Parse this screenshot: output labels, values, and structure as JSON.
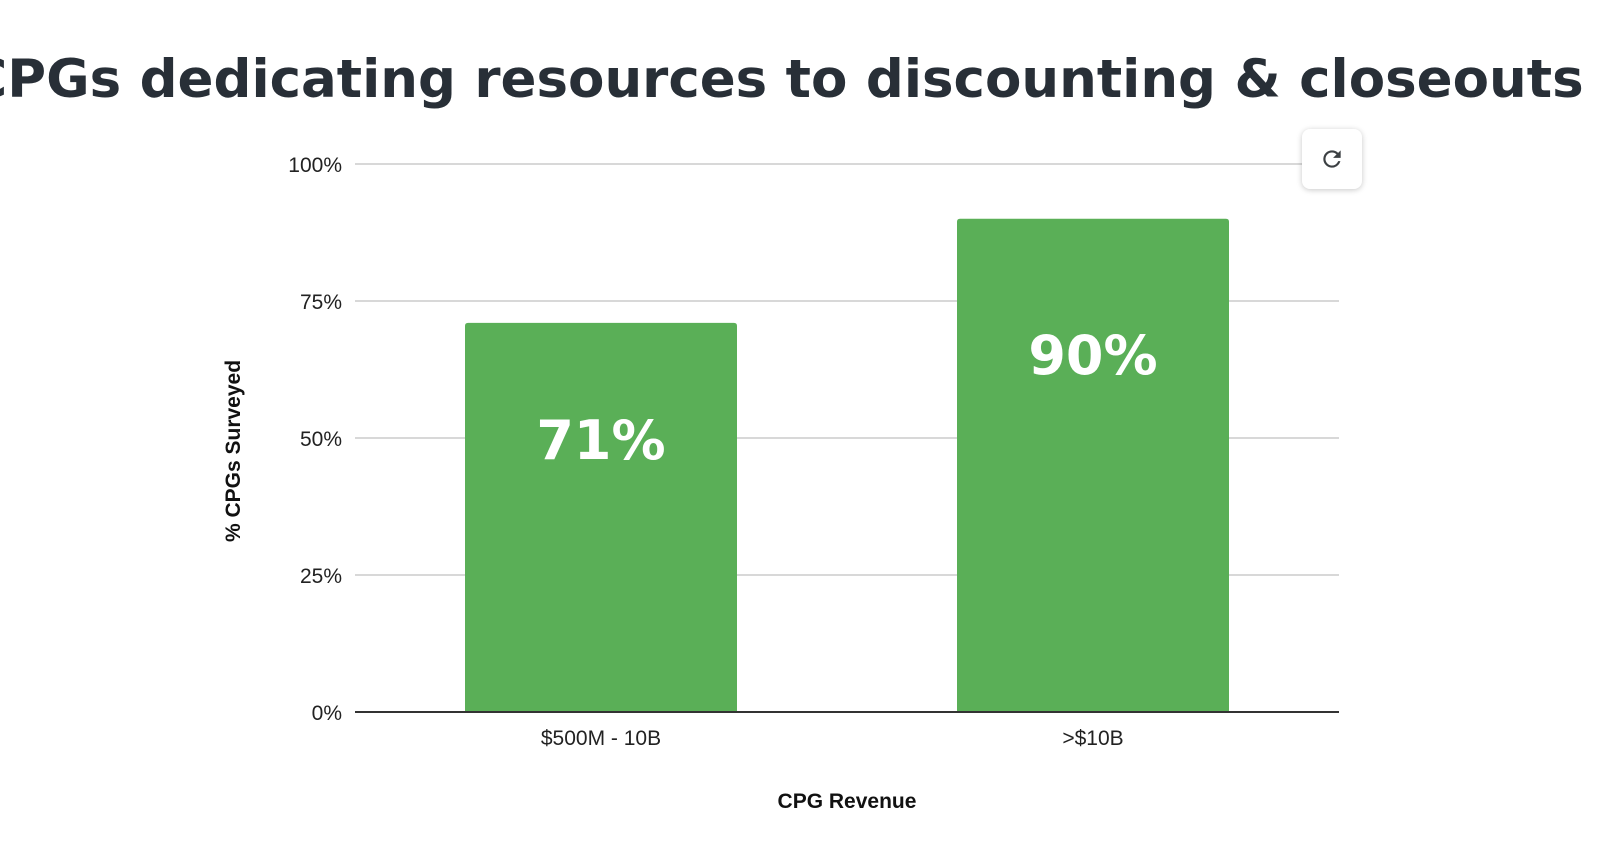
{
  "chart_data": {
    "type": "bar",
    "title": "CPGs dedicating resources to discounting & closeouts",
    "xlabel": "CPG Revenue",
    "ylabel": "% CPGs Surveyed",
    "categories": [
      "$500M - 10B",
      ">$10B"
    ],
    "values": [
      71,
      90
    ],
    "data_labels": [
      "71%",
      "90%"
    ],
    "ylim": [
      0,
      100
    ],
    "yticks": [
      0,
      25,
      50,
      75,
      100
    ],
    "ytick_labels": [
      "0%",
      "25%",
      "50%",
      "75%",
      "100%"
    ],
    "grid": true,
    "legend": "none",
    "bar_color": "#5aaf57"
  },
  "toolbar": {
    "refresh_icon": "refresh-icon"
  }
}
